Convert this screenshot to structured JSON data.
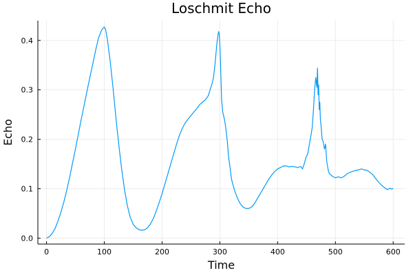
{
  "chart_data": {
    "type": "line",
    "title": "Loschmit Echo",
    "xlabel": "Time",
    "ylabel": "Echo",
    "xlim": [
      -15,
      620
    ],
    "ylim": [
      -0.012,
      0.44
    ],
    "xticks": [
      0,
      100,
      200,
      300,
      400,
      500,
      600
    ],
    "yticks": [
      0.0,
      0.1,
      0.2,
      0.3,
      0.4
    ],
    "xtick_labels": [
      "0",
      "100",
      "200",
      "300",
      "400",
      "500",
      "600"
    ],
    "ytick_labels": [
      "0.0",
      "0.1",
      "0.2",
      "0.3",
      "0.4"
    ],
    "grid": true,
    "legend": "none",
    "colors": {
      "series": "#009AFA"
    },
    "series": [
      {
        "x": [
          0,
          5,
          10,
          15,
          20,
          25,
          30,
          35,
          40,
          45,
          50,
          55,
          60,
          65,
          70,
          75,
          80,
          85,
          90,
          95,
          98,
          100,
          102,
          105,
          110,
          115,
          120,
          125,
          130,
          135,
          140,
          145,
          150,
          155,
          160,
          165,
          170,
          175,
          180,
          185,
          190,
          195,
          200,
          205,
          210,
          215,
          220,
          225,
          230,
          235,
          240,
          245,
          250,
          255,
          260,
          265,
          270,
          275,
          280,
          283,
          286,
          289,
          291,
          293,
          295,
          297,
          298,
          299,
          300,
          301,
          302,
          303,
          305,
          308,
          310,
          313,
          315,
          318,
          320,
          325,
          330,
          335,
          340,
          345,
          350,
          355,
          360,
          365,
          370,
          375,
          380,
          385,
          390,
          395,
          400,
          405,
          410,
          415,
          420,
          425,
          430,
          435,
          440,
          443,
          446,
          449,
          452,
          455,
          458,
          460,
          462,
          464,
          466,
          468,
          469,
          470,
          471,
          472,
          473,
          474,
          475,
          477,
          479,
          481,
          483,
          485,
          488,
          490,
          495,
          500,
          505,
          510,
          515,
          520,
          525,
          530,
          535,
          540,
          545,
          550,
          555,
          560,
          565,
          570,
          575,
          580,
          585,
          590,
          593,
          595,
          597,
          599,
          600
        ],
        "y": [
          0.0,
          0.003,
          0.01,
          0.02,
          0.035,
          0.053,
          0.073,
          0.097,
          0.123,
          0.152,
          0.18,
          0.21,
          0.24,
          0.268,
          0.297,
          0.325,
          0.352,
          0.38,
          0.405,
          0.42,
          0.425,
          0.427,
          0.423,
          0.405,
          0.36,
          0.305,
          0.245,
          0.19,
          0.14,
          0.098,
          0.065,
          0.042,
          0.028,
          0.021,
          0.017,
          0.016,
          0.017,
          0.021,
          0.029,
          0.04,
          0.055,
          0.072,
          0.09,
          0.11,
          0.13,
          0.15,
          0.17,
          0.19,
          0.208,
          0.222,
          0.233,
          0.241,
          0.248,
          0.255,
          0.262,
          0.27,
          0.275,
          0.28,
          0.288,
          0.3,
          0.31,
          0.325,
          0.345,
          0.37,
          0.395,
          0.413,
          0.418,
          0.412,
          0.39,
          0.36,
          0.32,
          0.28,
          0.255,
          0.24,
          0.225,
          0.195,
          0.165,
          0.14,
          0.12,
          0.098,
          0.082,
          0.07,
          0.063,
          0.06,
          0.06,
          0.063,
          0.07,
          0.08,
          0.09,
          0.1,
          0.11,
          0.12,
          0.128,
          0.135,
          0.14,
          0.143,
          0.146,
          0.146,
          0.144,
          0.145,
          0.144,
          0.143,
          0.145,
          0.14,
          0.15,
          0.163,
          0.17,
          0.19,
          0.21,
          0.225,
          0.26,
          0.3,
          0.325,
          0.305,
          0.344,
          0.29,
          0.31,
          0.26,
          0.275,
          0.24,
          0.23,
          0.2,
          0.195,
          0.18,
          0.19,
          0.155,
          0.135,
          0.13,
          0.125,
          0.122,
          0.124,
          0.122,
          0.125,
          0.13,
          0.133,
          0.135,
          0.137,
          0.138,
          0.14,
          0.138,
          0.137,
          0.133,
          0.128,
          0.12,
          0.113,
          0.107,
          0.102,
          0.098,
          0.1,
          0.101,
          0.099,
          0.1,
          0.101
        ]
      }
    ]
  }
}
